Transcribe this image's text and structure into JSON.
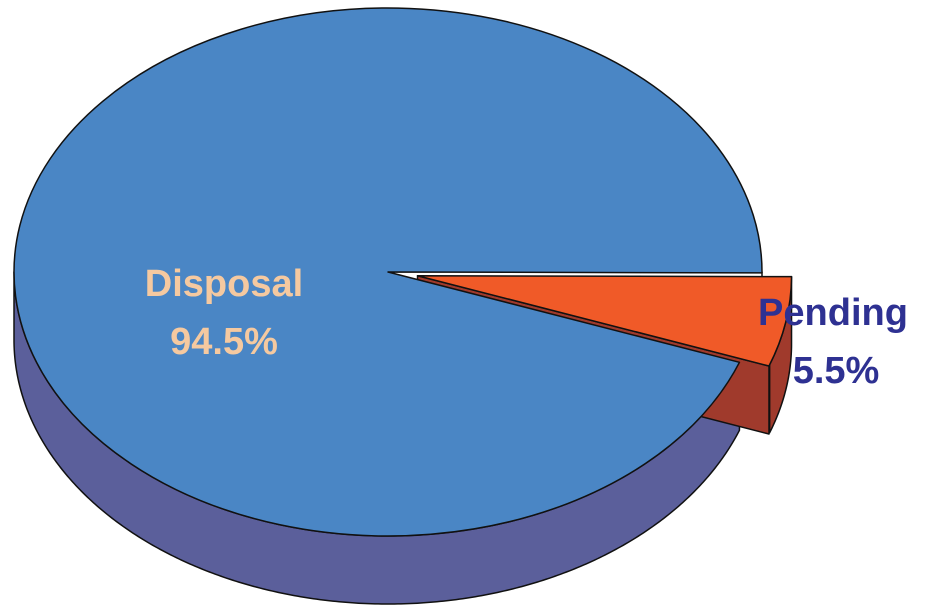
{
  "chart_data": {
    "type": "pie",
    "style": "3d-exploded",
    "slices": [
      {
        "category": "Disposal",
        "value": 94.5,
        "value_label": "94.5%",
        "color": "#4A86C5",
        "side_color": "#5B5F9B",
        "label_color": "#F5C9A0"
      },
      {
        "category": "Pending",
        "value": 5.5,
        "value_label": "5.5%",
        "color": "#F05A28",
        "side_color": "#A03A2C",
        "label_color": "#2E3192",
        "exploded": true
      }
    ],
    "legend": "none"
  }
}
